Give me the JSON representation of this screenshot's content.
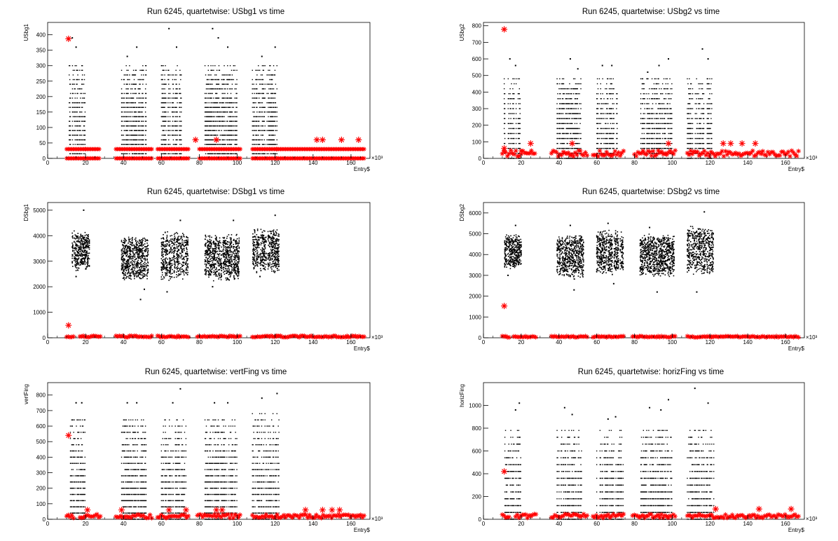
{
  "page": {
    "background": "#ffffff"
  },
  "colors": {
    "black_points": "#000000",
    "red_points": "#ff0000",
    "frame": "#000000"
  },
  "chart_data": [
    {
      "id": "usbg1",
      "type": "scatter",
      "title": "Run 6245, quartetwise: USbg1 vs time",
      "xlabel": "Entry$",
      "ylabel": "USbg1",
      "x_multiplier": "×10³",
      "xlim": [
        0,
        170
      ],
      "ylim": [
        0,
        440
      ],
      "x_ticks": [
        0,
        20,
        40,
        60,
        80,
        100,
        120,
        140,
        160
      ],
      "y_ticks": [
        0,
        50,
        100,
        150,
        200,
        250,
        300,
        350,
        400
      ],
      "marker_black": "dot",
      "marker_red": "star",
      "black_blocks": [
        {
          "x0": 11,
          "x1": 20,
          "ymax": 300,
          "yspread": 30,
          "outliers": [
            [
              13,
              390
            ],
            [
              15,
              360
            ]
          ]
        },
        {
          "x0": 39,
          "x1": 52,
          "ymax": 300,
          "yspread": 30,
          "outliers": [
            [
              42,
              330
            ],
            [
              47,
              360
            ]
          ]
        },
        {
          "x0": 60,
          "x1": 71,
          "ymax": 300,
          "yspread": 30,
          "outliers": [
            [
              64,
              420
            ],
            [
              68,
              360
            ]
          ]
        },
        {
          "x0": 83,
          "x1": 100,
          "ymax": 300,
          "yspread": 30,
          "outliers": [
            [
              87,
              420
            ],
            [
              90,
              390
            ],
            [
              95,
              360
            ]
          ]
        },
        {
          "x0": 108,
          "x1": 121,
          "ymax": 300,
          "yspread": 30,
          "outliers": [
            [
              113,
              330
            ],
            [
              120,
              360
            ]
          ]
        }
      ],
      "red_blocks": [
        {
          "x0": 10,
          "x1": 20,
          "ymax": 30
        },
        {
          "x0": 20,
          "x1": 28,
          "ymax": 30
        },
        {
          "x0": 36,
          "x1": 55,
          "ymax": 30
        },
        {
          "x0": 58,
          "x1": 75,
          "ymax": 30
        },
        {
          "x0": 80,
          "x1": 102,
          "ymax": 30
        },
        {
          "x0": 108,
          "x1": 121,
          "ymax": 30
        },
        {
          "x0": 121,
          "x1": 167,
          "ymax": 30
        }
      ],
      "red_levels": [
        0,
        30
      ],
      "red_outliers": [
        [
          11,
          387
        ],
        [
          78,
          60
        ],
        [
          89,
          60
        ],
        [
          142,
          60
        ],
        [
          145,
          60
        ],
        [
          155,
          60
        ],
        [
          164,
          60
        ]
      ]
    },
    {
      "id": "usbg2",
      "type": "scatter",
      "title": "Run 6245, quartetwise: USbg2 vs time",
      "xlabel": "Entry$",
      "ylabel": "USbg2",
      "x_multiplier": "×10³",
      "xlim": [
        0,
        170
      ],
      "ylim": [
        0,
        820
      ],
      "x_ticks": [
        0,
        20,
        40,
        60,
        80,
        100,
        120,
        140,
        160
      ],
      "y_ticks": [
        0,
        100,
        200,
        300,
        400,
        500,
        600,
        700,
        800
      ],
      "marker_black": "dot",
      "marker_red": "star",
      "black_blocks": [
        {
          "x0": 11,
          "x1": 20,
          "ymax": 480,
          "yspread": 60,
          "outliers": [
            [
              14,
              600
            ],
            [
              17,
              560
            ]
          ]
        },
        {
          "x0": 39,
          "x1": 52,
          "ymax": 480,
          "yspread": 60,
          "outliers": [
            [
              46,
              600
            ],
            [
              50,
              540
            ]
          ]
        },
        {
          "x0": 60,
          "x1": 71,
          "ymax": 480,
          "yspread": 60,
          "outliers": [
            [
              63,
              560
            ],
            [
              68,
              560
            ]
          ]
        },
        {
          "x0": 83,
          "x1": 100,
          "ymax": 480,
          "yspread": 60,
          "outliers": [
            [
              87,
              520
            ],
            [
              93,
              560
            ],
            [
              98,
              600
            ]
          ]
        },
        {
          "x0": 108,
          "x1": 121,
          "ymax": 480,
          "yspread": 60,
          "outliers": [
            [
              116,
              660
            ],
            [
              119,
              600
            ]
          ]
        }
      ],
      "red_blocks": [
        {
          "x0": 10,
          "x1": 20,
          "ymax": 60
        },
        {
          "x0": 20,
          "x1": 28,
          "ymax": 60
        },
        {
          "x0": 36,
          "x1": 55,
          "ymax": 60
        },
        {
          "x0": 58,
          "x1": 75,
          "ymax": 60
        },
        {
          "x0": 80,
          "x1": 102,
          "ymax": 60
        },
        {
          "x0": 108,
          "x1": 121,
          "ymax": 60
        },
        {
          "x0": 121,
          "x1": 167,
          "ymax": 60
        }
      ],
      "red_levels": [],
      "red_outliers": [
        [
          11,
          778
        ],
        [
          11,
          60
        ],
        [
          25,
          90
        ],
        [
          47,
          90
        ],
        [
          98,
          90
        ],
        [
          127,
          90
        ],
        [
          131,
          90
        ],
        [
          137,
          90
        ],
        [
          144,
          90
        ]
      ]
    },
    {
      "id": "dsbg1",
      "type": "scatter",
      "title": "Run 6245, quartetwise: DSbg1 vs time",
      "xlabel": "Entry$",
      "ylabel": "DSbg1",
      "x_multiplier": "×10³",
      "xlim": [
        0,
        170
      ],
      "ylim": [
        0,
        5300
      ],
      "x_ticks": [
        0,
        20,
        40,
        60,
        80,
        100,
        120,
        140,
        160
      ],
      "y_ticks": [
        0,
        1000,
        2000,
        3000,
        4000,
        5000
      ],
      "marker_black": "dot",
      "marker_red": "star",
      "black_blocks": [
        {
          "x0": 13,
          "x1": 22,
          "ymin": 2600,
          "ymax": 4200,
          "outliers": [
            [
              19,
              5000
            ],
            [
              15,
              2400
            ]
          ]
        },
        {
          "x0": 39,
          "x1": 53,
          "ymin": 2200,
          "ymax": 4000,
          "outliers": [
            [
              49,
              1500
            ],
            [
              51,
              1900
            ]
          ]
        },
        {
          "x0": 60,
          "x1": 74,
          "ymin": 2200,
          "ymax": 4200,
          "outliers": [
            [
              63,
              1800
            ],
            [
              70,
              4600
            ]
          ]
        },
        {
          "x0": 83,
          "x1": 101,
          "ymin": 2200,
          "ymax": 4100,
          "outliers": [
            [
              98,
              4600
            ],
            [
              87,
              2000
            ]
          ]
        },
        {
          "x0": 108,
          "x1": 122,
          "ymin": 2500,
          "ymax": 4300,
          "outliers": [
            [
              120,
              4800
            ],
            [
              112,
              2400
            ]
          ]
        }
      ],
      "red_blocks": [
        {
          "x0": 10,
          "x1": 14,
          "ymax": 100
        },
        {
          "x0": 17,
          "x1": 28,
          "ymax": 100
        },
        {
          "x0": 36,
          "x1": 55,
          "ymax": 100
        },
        {
          "x0": 58,
          "x1": 75,
          "ymax": 100
        },
        {
          "x0": 79,
          "x1": 102,
          "ymax": 100
        },
        {
          "x0": 108,
          "x1": 121,
          "ymax": 100
        },
        {
          "x0": 121,
          "x1": 167,
          "ymax": 100
        }
      ],
      "red_levels": [],
      "red_outliers": [
        [
          11,
          490
        ]
      ]
    },
    {
      "id": "dsbg2",
      "type": "scatter",
      "title": "Run 6245, quartetwise: DSbg2 vs time",
      "xlabel": "Entry$",
      "ylabel": "DSbg2",
      "x_multiplier": "×10³",
      "xlim": [
        0,
        170
      ],
      "ylim": [
        0,
        6500
      ],
      "x_ticks": [
        0,
        20,
        40,
        60,
        80,
        100,
        120,
        140,
        160
      ],
      "y_ticks": [
        0,
        1000,
        2000,
        3000,
        4000,
        5000,
        6000
      ],
      "marker_black": "dot",
      "marker_red": "star",
      "black_blocks": [
        {
          "x0": 11,
          "x1": 20,
          "ymin": 3300,
          "ymax": 5000,
          "outliers": [
            [
              17,
              5400
            ],
            [
              13,
              3000
            ]
          ]
        },
        {
          "x0": 39,
          "x1": 53,
          "ymin": 2800,
          "ymax": 5000,
          "outliers": [
            [
              48,
              2300
            ],
            [
              46,
              5400
            ]
          ]
        },
        {
          "x0": 60,
          "x1": 74,
          "ymin": 3000,
          "ymax": 5200,
          "outliers": [
            [
              66,
              5500
            ],
            [
              69,
              2600
            ]
          ]
        },
        {
          "x0": 83,
          "x1": 101,
          "ymin": 2900,
          "ymax": 5000,
          "outliers": [
            [
              92,
              2200
            ],
            [
              88,
              5300
            ]
          ]
        },
        {
          "x0": 108,
          "x1": 122,
          "ymin": 3000,
          "ymax": 5400,
          "outliers": [
            [
              117,
              6050
            ],
            [
              113,
              2200
            ]
          ]
        }
      ],
      "red_blocks": [
        {
          "x0": 10,
          "x1": 14,
          "ymax": 100
        },
        {
          "x0": 16,
          "x1": 28,
          "ymax": 100
        },
        {
          "x0": 36,
          "x1": 55,
          "ymax": 100
        },
        {
          "x0": 58,
          "x1": 75,
          "ymax": 100
        },
        {
          "x0": 79,
          "x1": 102,
          "ymax": 100
        },
        {
          "x0": 108,
          "x1": 121,
          "ymax": 100
        },
        {
          "x0": 121,
          "x1": 167,
          "ymax": 100
        }
      ],
      "red_levels": [],
      "red_outliers": [
        [
          11,
          1530
        ]
      ]
    },
    {
      "id": "vertfing",
      "type": "scatter",
      "title": "Run 6245, quartetwise: vertFing vs time",
      "xlabel": "Entry$",
      "ylabel": "vertFing",
      "x_multiplier": "×10³",
      "xlim": [
        0,
        170
      ],
      "ylim": [
        0,
        880
      ],
      "x_ticks": [
        0,
        20,
        40,
        60,
        80,
        100,
        120,
        140,
        160
      ],
      "y_ticks": [
        0,
        100,
        200,
        300,
        400,
        500,
        600,
        700,
        800
      ],
      "marker_black": "dot",
      "marker_red": "star",
      "black_blocks": [
        {
          "x0": 12,
          "x1": 20,
          "ymax": 640,
          "yspread": 80,
          "outliers": [
            [
              15,
              750
            ],
            [
              18,
              750
            ]
          ]
        },
        {
          "x0": 39,
          "x1": 52,
          "ymax": 640,
          "yspread": 80,
          "outliers": [
            [
              42,
              750
            ],
            [
              47,
              750
            ]
          ]
        },
        {
          "x0": 60,
          "x1": 73,
          "ymax": 640,
          "yspread": 80,
          "outliers": [
            [
              70,
              840
            ],
            [
              66,
              750
            ]
          ]
        },
        {
          "x0": 83,
          "x1": 100,
          "ymax": 640,
          "yspread": 80,
          "outliers": [
            [
              88,
              750
            ],
            [
              95,
              750
            ]
          ]
        },
        {
          "x0": 108,
          "x1": 122,
          "ymax": 680,
          "yspread": 80,
          "outliers": [
            [
              113,
              780
            ],
            [
              121,
              810
            ]
          ]
        }
      ],
      "red_blocks": [
        {
          "x0": 10,
          "x1": 14,
          "ymax": 40
        },
        {
          "x0": 17,
          "x1": 28,
          "ymax": 40
        },
        {
          "x0": 36,
          "x1": 55,
          "ymax": 40
        },
        {
          "x0": 58,
          "x1": 75,
          "ymax": 40
        },
        {
          "x0": 79,
          "x1": 102,
          "ymax": 40
        },
        {
          "x0": 108,
          "x1": 121,
          "ymax": 40
        },
        {
          "x0": 121,
          "x1": 167,
          "ymax": 40
        }
      ],
      "red_levels": [],
      "red_outliers": [
        [
          11,
          540
        ],
        [
          21,
          60
        ],
        [
          39,
          60
        ],
        [
          64,
          60
        ],
        [
          73,
          60
        ],
        [
          89,
          60
        ],
        [
          92,
          60
        ],
        [
          136,
          60
        ],
        [
          145,
          60
        ],
        [
          150,
          60
        ],
        [
          154,
          60
        ]
      ]
    },
    {
      "id": "horizfing",
      "type": "scatter",
      "title": "Run 6245, quartetwise: horizFing vs time",
      "xlabel": "Entry$",
      "ylabel": "horizFing",
      "x_multiplier": "×10³",
      "xlim": [
        0,
        170
      ],
      "ylim": [
        0,
        1200
      ],
      "x_ticks": [
        0,
        20,
        40,
        60,
        80,
        100,
        120,
        140,
        160
      ],
      "y_ticks": [
        0,
        200,
        400,
        600,
        800,
        1000
      ],
      "marker_black": "dot",
      "marker_red": "star",
      "black_blocks": [
        {
          "x0": 11,
          "x1": 20,
          "ymax": 780,
          "yspread": 120,
          "outliers": [
            [
              17,
              960
            ],
            [
              19,
              1020
            ]
          ]
        },
        {
          "x0": 39,
          "x1": 52,
          "ymax": 780,
          "yspread": 120,
          "outliers": [
            [
              43,
              980
            ],
            [
              47,
              920
            ]
          ]
        },
        {
          "x0": 60,
          "x1": 74,
          "ymax": 780,
          "yspread": 120,
          "outliers": [
            [
              70,
              900
            ],
            [
              66,
              880
            ]
          ]
        },
        {
          "x0": 83,
          "x1": 100,
          "ymax": 780,
          "yspread": 120,
          "outliers": [
            [
              88,
              980
            ],
            [
              94,
              960
            ],
            [
              98,
              1050
            ]
          ]
        },
        {
          "x0": 108,
          "x1": 122,
          "ymax": 800,
          "yspread": 120,
          "outliers": [
            [
              112,
              1150
            ],
            [
              119,
              1020
            ]
          ]
        }
      ],
      "red_blocks": [
        {
          "x0": 10,
          "x1": 14,
          "ymax": 60
        },
        {
          "x0": 17,
          "x1": 28,
          "ymax": 60
        },
        {
          "x0": 36,
          "x1": 55,
          "ymax": 60
        },
        {
          "x0": 58,
          "x1": 75,
          "ymax": 60
        },
        {
          "x0": 79,
          "x1": 102,
          "ymax": 60
        },
        {
          "x0": 108,
          "x1": 121,
          "ymax": 60
        },
        {
          "x0": 121,
          "x1": 167,
          "ymax": 60
        }
      ],
      "red_levels": [],
      "red_outliers": [
        [
          11,
          420
        ],
        [
          123,
          90
        ],
        [
          146,
          90
        ],
        [
          163,
          90
        ]
      ]
    }
  ]
}
